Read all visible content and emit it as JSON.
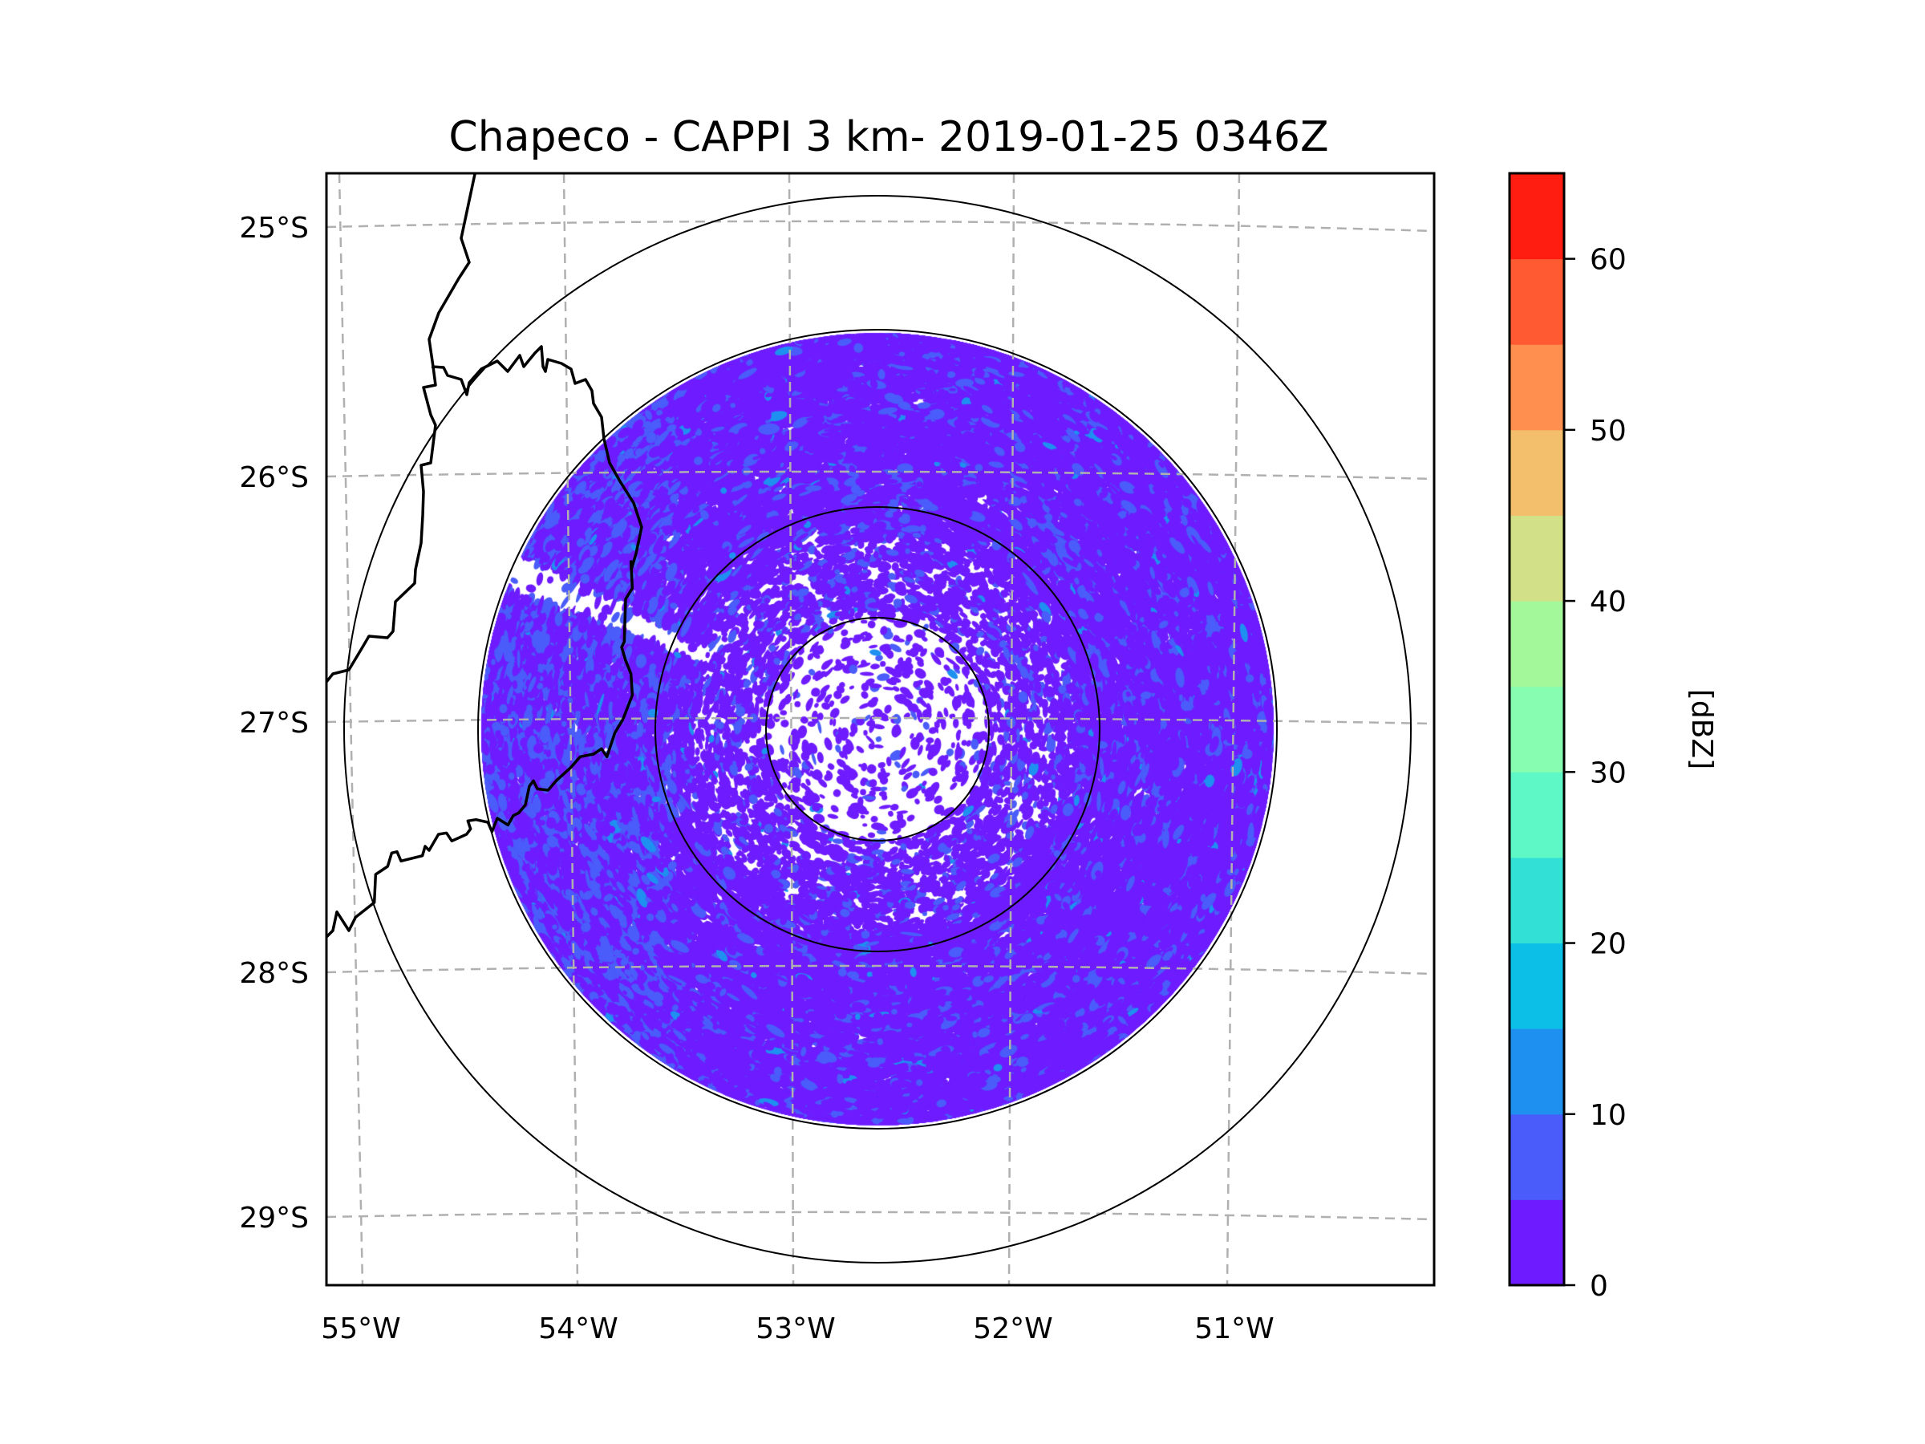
{
  "figure": {
    "title": "Chapeco - CAPPI 3 km- 2019-01-25 0346Z",
    "radar_name": "Chapeco",
    "product": "CAPPI 3 km",
    "timestamp": "2019-01-25 0346Z"
  },
  "map": {
    "lon_ticks": [
      {
        "value": -55,
        "label": "55°W"
      },
      {
        "value": -54,
        "label": "54°W"
      },
      {
        "value": -53,
        "label": "53°W"
      },
      {
        "value": -52,
        "label": "52°W"
      },
      {
        "value": -51,
        "label": "51°W"
      }
    ],
    "lat_ticks": [
      {
        "value": -25,
        "label": "25°S"
      },
      {
        "value": -26,
        "label": "26°S"
      },
      {
        "value": -27,
        "label": "27°S"
      },
      {
        "value": -28,
        "label": "28°S"
      },
      {
        "value": -29,
        "label": "29°S"
      }
    ],
    "gridlines": "dashed",
    "gridline_color": "#b0b0b0",
    "range_rings": 4,
    "beam_blockage": "northwest sector"
  },
  "colorbar": {
    "label": "[dBZ]",
    "min": 0,
    "max": 65,
    "step": 5,
    "tick_labels": [
      "0",
      "10",
      "20",
      "30",
      "40",
      "50",
      "60"
    ],
    "tick_values": [
      0,
      10,
      20,
      30,
      40,
      50,
      60
    ],
    "colors": [
      "#6e1cff",
      "#4a5cf9",
      "#1e90f0",
      "#0bbfe6",
      "#33e0d6",
      "#5ef8c6",
      "#86fdb0",
      "#a3f99a",
      "#d2e088",
      "#f4bf6c",
      "#ff8f4f",
      "#ff5a32",
      "#ff1d12"
    ]
  },
  "chart_data": {
    "type": "heatmap",
    "title": "Chapeco - CAPPI 3 km- 2019-01-25 0346Z",
    "xlabel": "",
    "ylabel": "",
    "x_ticks": [
      "55°W",
      "54°W",
      "53°W",
      "52°W",
      "51°W"
    ],
    "y_ticks": [
      "25°S",
      "26°S",
      "27°S",
      "28°S",
      "29°S"
    ],
    "xlim": [
      -55.2,
      -50.05
    ],
    "ylim": [
      -29.25,
      -24.8
    ],
    "colorbar": {
      "label": "[dBZ]",
      "range": [
        0,
        65
      ],
      "levels": 13
    },
    "radar_center": {
      "lon": -52.6,
      "lat": -27.0
    },
    "dominant_reflectivity_dBZ": [
      0,
      10
    ],
    "description": "Clear-air echoes mostly 0-5 dBZ with scattered 5-10 dBZ patches, denser at outer ranges, beam-blocked wedge to the northwest"
  }
}
